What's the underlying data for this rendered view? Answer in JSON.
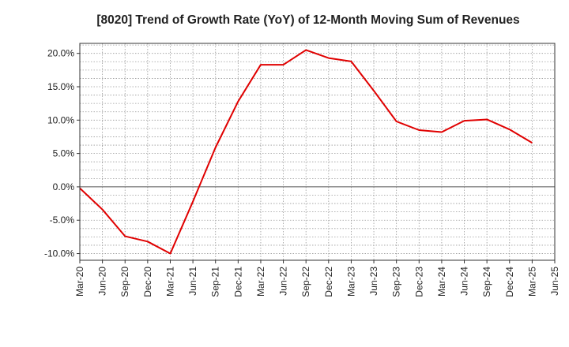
{
  "chart_data": {
    "type": "line",
    "title": "[8020]  Trend of Growth Rate (YoY) of 12-Month Moving Sum of Revenues",
    "xlabel": "",
    "ylabel": "",
    "categories": [
      "Mar-20",
      "Jun-20",
      "Sep-20",
      "Dec-20",
      "Mar-21",
      "Jun-21",
      "Sep-21",
      "Dec-21",
      "Mar-22",
      "Jun-22",
      "Sep-22",
      "Dec-22",
      "Mar-23",
      "Jun-23",
      "Sep-23",
      "Dec-23",
      "Mar-24",
      "Jun-24",
      "Sep-24",
      "Dec-24",
      "Mar-25",
      "Jun-25"
    ],
    "series": [
      {
        "color": "#e00000",
        "values": [
          -0.2,
          -3.4,
          -7.4,
          -8.2,
          -10.0,
          -2.2,
          5.9,
          12.8,
          18.3,
          18.3,
          20.5,
          19.3,
          18.8,
          14.4,
          9.8,
          8.5,
          8.2,
          9.9,
          10.1,
          8.6,
          6.6,
          null
        ]
      }
    ],
    "yticks": [
      -10,
      -5,
      0,
      5,
      10,
      15,
      20
    ],
    "ytick_labels": [
      "-10.0%",
      "-5.0%",
      "0.0%",
      "5.0%",
      "10.0%",
      "15.0%",
      "20.0%"
    ],
    "ylim": [
      -11.0,
      21.5
    ],
    "grid": true,
    "legend": "none"
  }
}
